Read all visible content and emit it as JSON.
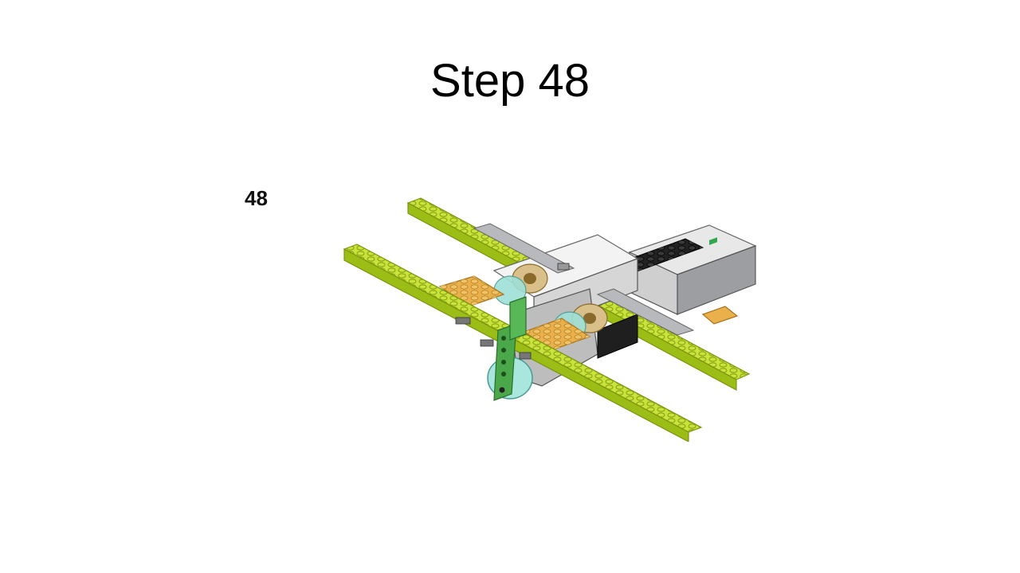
{
  "slide": {
    "title": "Step 48",
    "step_number": "48"
  },
  "illustration": {
    "subject": "lego-build-model",
    "colors": {
      "lime": "#b5d422",
      "lime_dark": "#8fae10",
      "tan": "#e9b04b",
      "black": "#222222",
      "gray": "#a7a9ac",
      "white": "#eeeeee",
      "teal": "#7fd1c8",
      "green": "#4aa84a"
    }
  }
}
